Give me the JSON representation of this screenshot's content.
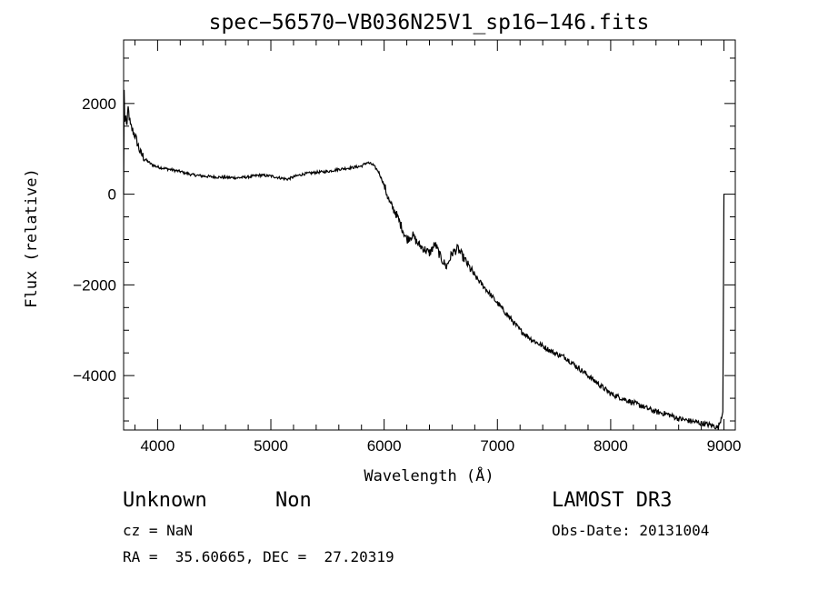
{
  "chart_data": {
    "type": "line",
    "title": "spec−56570−VB036N25V1_sp16−146.fits",
    "xlabel": "Wavelength (Å)",
    "ylabel": "Flux (relative)",
    "xlim": [
      3700,
      9100
    ],
    "ylim": [
      -5200,
      3400
    ],
    "x_ticks": [
      4000,
      5000,
      6000,
      7000,
      8000,
      9000
    ],
    "y_ticks": [
      2000,
      0,
      -2000,
      -4000
    ],
    "y_tick_labels": [
      "2000",
      "0",
      "−2000",
      "−4000"
    ],
    "x": [
      3700,
      3705,
      3710,
      3720,
      3730,
      3740,
      3760,
      3780,
      3800,
      3850,
      3900,
      3950,
      4000,
      4100,
      4200,
      4300,
      4400,
      4500,
      4600,
      4700,
      4800,
      4900,
      5000,
      5100,
      5150,
      5200,
      5250,
      5300,
      5400,
      5500,
      5600,
      5700,
      5800,
      5850,
      5900,
      5950,
      6000,
      6050,
      6100,
      6150,
      6200,
      6250,
      6300,
      6350,
      6400,
      6450,
      6500,
      6550,
      6600,
      6650,
      6700,
      6750,
      6800,
      6900,
      7000,
      7100,
      7200,
      7300,
      7400,
      7500,
      7600,
      7700,
      7800,
      7900,
      8000,
      8100,
      8200,
      8300,
      8400,
      8500,
      8600,
      8700,
      8800,
      8900,
      8950,
      8990,
      9000,
      9002
    ],
    "y": [
      0,
      2300,
      1600,
      1700,
      1500,
      1900,
      1500,
      1400,
      1300,
      900,
      750,
      650,
      600,
      550,
      500,
      430,
      400,
      380,
      370,
      360,
      380,
      420,
      400,
      350,
      330,
      380,
      420,
      450,
      480,
      500,
      550,
      580,
      620,
      700,
      650,
      500,
      200,
      -200,
      -400,
      -700,
      -1000,
      -900,
      -1100,
      -1200,
      -1300,
      -1100,
      -1400,
      -1600,
      -1300,
      -1200,
      -1400,
      -1600,
      -1800,
      -2100,
      -2400,
      -2700,
      -3000,
      -3200,
      -3350,
      -3500,
      -3600,
      -3800,
      -4000,
      -4200,
      -4400,
      -4500,
      -4600,
      -4700,
      -4800,
      -4850,
      -4950,
      -5000,
      -5050,
      -5100,
      -5150,
      -4800,
      0,
      0
    ]
  },
  "footer": {
    "class_label": "Unknown",
    "subclass_label": "Non",
    "survey_label": "LAMOST DR3",
    "cz_label": "cz = NaN",
    "obs_date_label": "Obs-Date: 20131004",
    "coords_label": "RA =  35.60665, DEC =  27.20319"
  }
}
